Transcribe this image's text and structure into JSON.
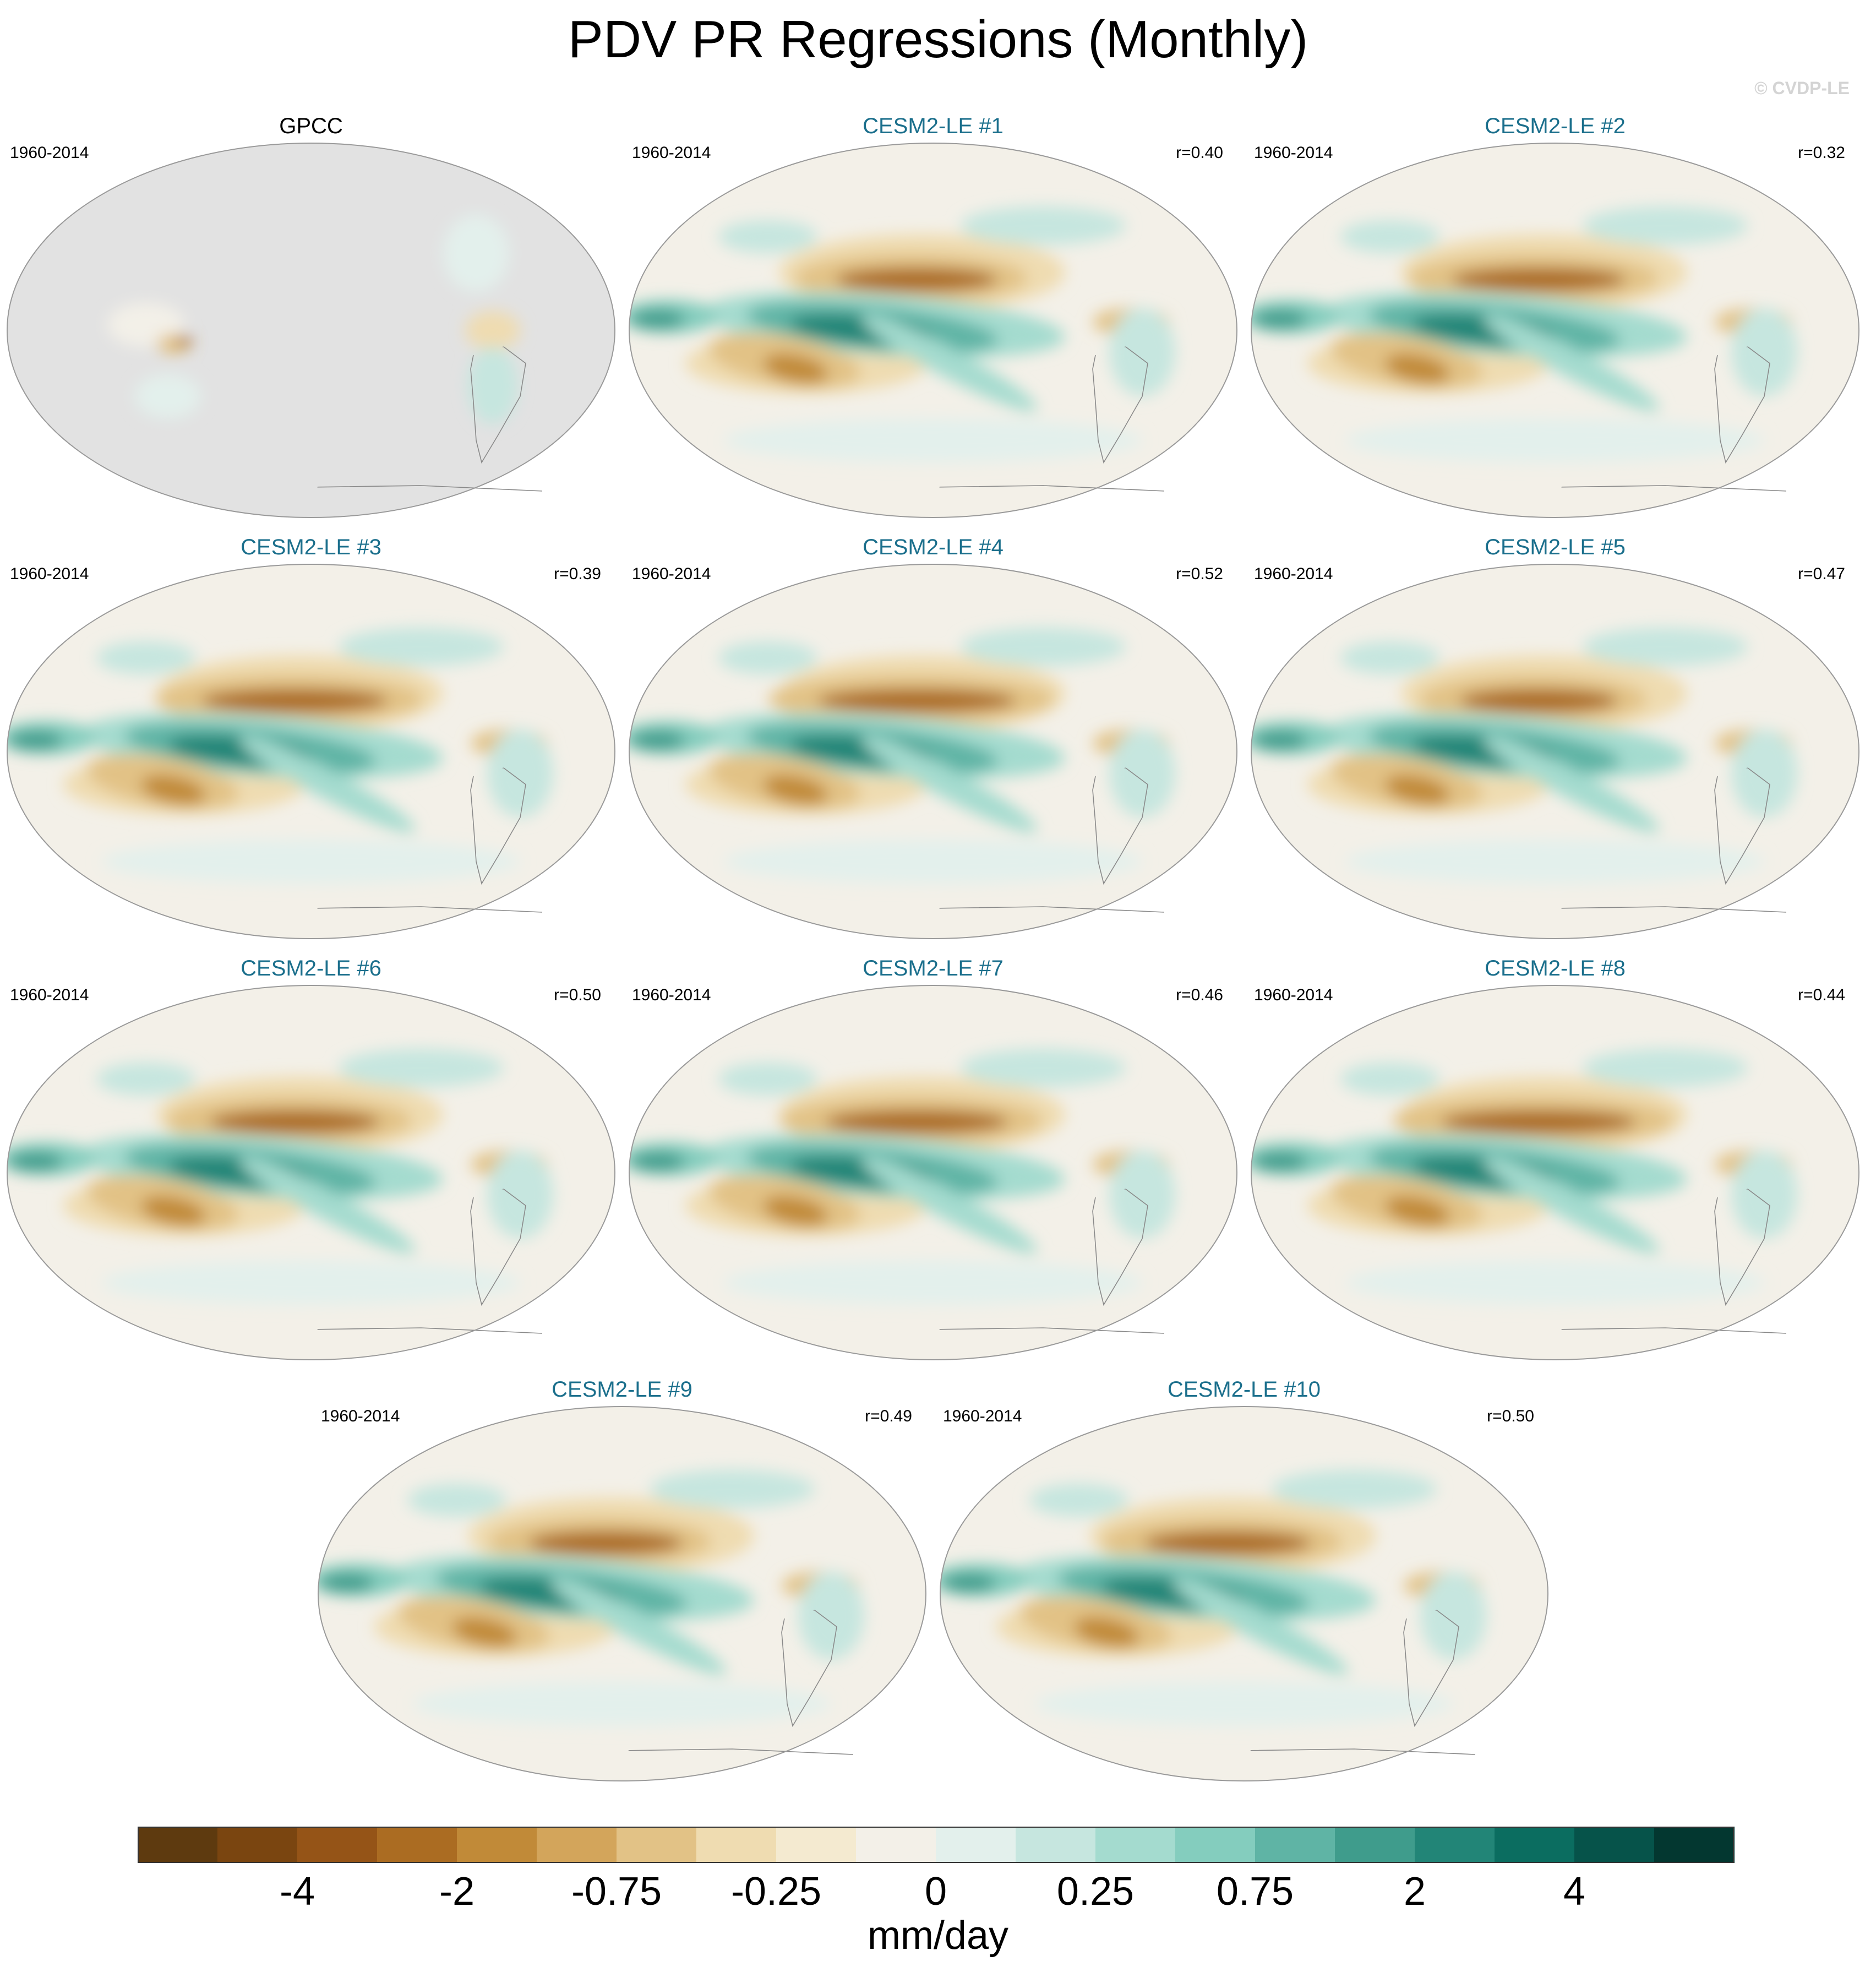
{
  "figure": {
    "title": "PDV PR Regressions (Monthly)",
    "watermark": "© CVDP-LE"
  },
  "panels": [
    {
      "title": "GPCC",
      "period": "1960-2014",
      "r": "",
      "observed": true
    },
    {
      "title": "CESM2-LE #1",
      "period": "1960-2014",
      "r": "r=0.40",
      "observed": false
    },
    {
      "title": "CESM2-LE #2",
      "period": "1960-2014",
      "r": "r=0.32",
      "observed": false
    },
    {
      "title": "CESM2-LE #3",
      "period": "1960-2014",
      "r": "r=0.39",
      "observed": false
    },
    {
      "title": "CESM2-LE #4",
      "period": "1960-2014",
      "r": "r=0.52",
      "observed": false
    },
    {
      "title": "CESM2-LE #5",
      "period": "1960-2014",
      "r": "r=0.47",
      "observed": false
    },
    {
      "title": "CESM2-LE #6",
      "period": "1960-2014",
      "r": "r=0.50",
      "observed": false
    },
    {
      "title": "CESM2-LE #7",
      "period": "1960-2014",
      "r": "r=0.46",
      "observed": false
    },
    {
      "title": "CESM2-LE #8",
      "period": "1960-2014",
      "r": "r=0.44",
      "observed": false
    },
    {
      "title": "CESM2-LE #9",
      "period": "1960-2014",
      "r": "r=0.49",
      "observed": false
    },
    {
      "title": "CESM2-LE #10",
      "period": "1960-2014",
      "r": "r=0.50",
      "observed": false
    }
  ],
  "colorbar": {
    "units": "mm/day",
    "tick_labels": [
      "-4",
      "-2",
      "-0.75",
      "-0.25",
      "0",
      "0.25",
      "0.75",
      "2",
      "4"
    ],
    "colors": [
      "#5e3a0f",
      "#7a4510",
      "#955417",
      "#ab6c22",
      "#c18a38",
      "#d3a55b",
      "#e2c286",
      "#efdcb1",
      "#f4ead0",
      "#f3f0e8",
      "#e3f0ec",
      "#c6e6df",
      "#a4dbcf",
      "#84cdbe",
      "#5fb4a5",
      "#3f9c8c",
      "#228577",
      "#0b6d60",
      "#06534a",
      "#033730"
    ]
  },
  "colors": {
    "land_mask": "#e2e2e2",
    "panel_title": "#1b6f8c",
    "coast": "#8a8a8a",
    "neutral_fill": "#f3f0e8"
  }
}
